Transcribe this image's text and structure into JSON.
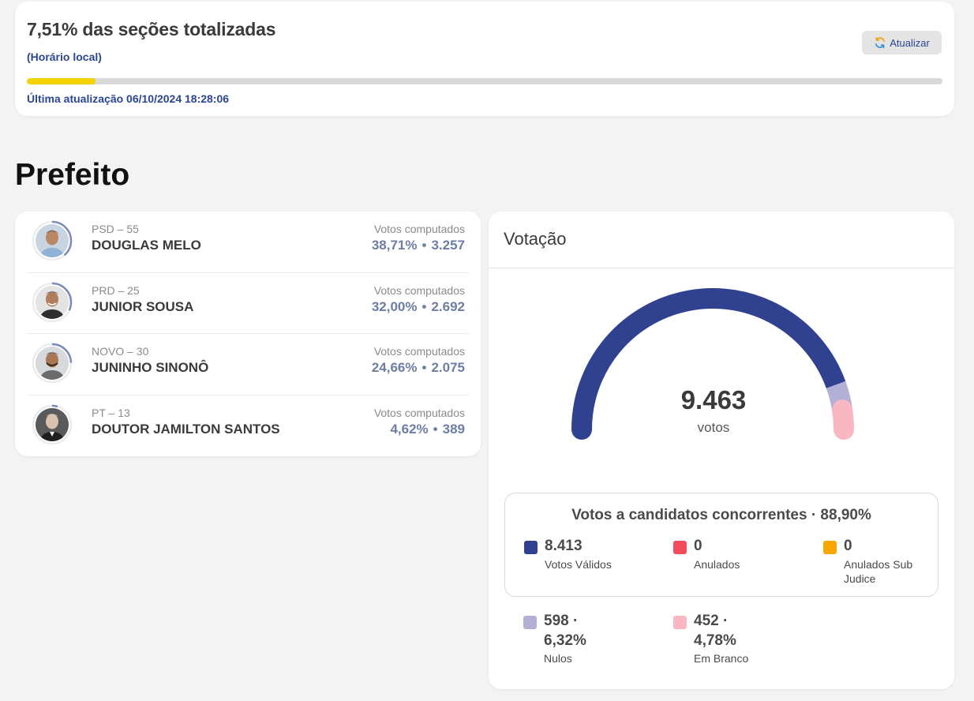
{
  "status": {
    "title": "7,51% das seções totalizadas",
    "subtitle": "(Horário local)",
    "refresh_label": "Atualizar",
    "progress_percent": 7.51,
    "last_update": "Última atualização 06/10/2024 18:28:06",
    "colors": {
      "progress": "#f4d100",
      "accent": "#2b4591"
    }
  },
  "section_title": "Prefeito",
  "candidates": [
    {
      "party": "PSD – 55",
      "name": "DOUGLAS MELO",
      "votes_label": "Votos computados",
      "percent": "38,71%",
      "dot": "•",
      "votes": "3.257",
      "ring_fraction": 0.3871
    },
    {
      "party": "PRD – 25",
      "name": "JUNIOR SOUSA",
      "votes_label": "Votos computados",
      "percent": "32,00%",
      "dot": "•",
      "votes": "2.692",
      "ring_fraction": 0.32
    },
    {
      "party": "NOVO – 30",
      "name": "JUNINHO SINONÔ",
      "votes_label": "Votos computados",
      "percent": "24,66%",
      "dot": "•",
      "votes": "2.075",
      "ring_fraction": 0.2466
    },
    {
      "party": "PT – 13",
      "name": "DOUTOR JAMILTON SANTOS",
      "votes_label": "Votos computados",
      "percent": "4,62%",
      "dot": "•",
      "votes": "389",
      "ring_fraction": 0.0462
    }
  ],
  "voting": {
    "header": "Votação",
    "total": "9.463",
    "total_label": "votos",
    "gauge_fractions": {
      "valid": 0.889,
      "nulls": 0.0632,
      "blank": 0.0478
    },
    "colors": {
      "valid": "#30418f",
      "annulled": "#f24c5d",
      "annulled_sub_judice": "#f7a500",
      "nulls": "#b2b0d4",
      "blank": "#f9b7c2"
    },
    "valid_box": {
      "title": "Votos a candidatos concorrentes · 88,90%",
      "items": [
        {
          "value": "8.413",
          "label": "Votos Válidos"
        },
        {
          "value": "0",
          "label": "Anulados"
        },
        {
          "value": "0",
          "label": "Anulados Sub Judice"
        }
      ]
    },
    "others": [
      {
        "value_line1": "598 ·",
        "value_line2": "6,32%",
        "label": "Nulos"
      },
      {
        "value_line1": "452 ·",
        "value_line2": "4,78%",
        "label": "Em Branco"
      }
    ]
  }
}
